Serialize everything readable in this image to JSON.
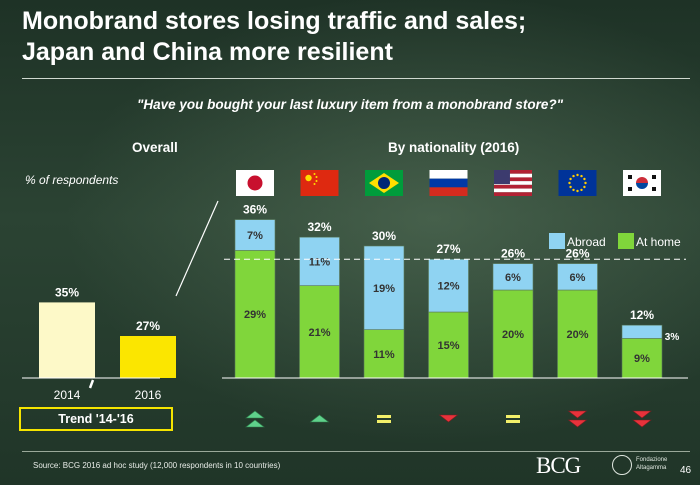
{
  "title_line1": "Monobrand stores losing traffic and sales;",
  "title_line2": "Japan and China more resilient",
  "question": "\"Have you bought your last luxury item from a monobrand store?\"",
  "overall_heading": "Overall",
  "nationality_heading": "By nationality (2016)",
  "respondents_label": "% of respondents",
  "trend_label": "Trend '14-'16",
  "source": "Source: BCG 2016 ad hoc study (12,000 respondents in 10 countries)",
  "logo_text": "BCG",
  "partner_logo_line1": "Fondazione",
  "partner_logo_line2": "Altagamma",
  "page_number": "46",
  "colors": {
    "overall_2014": "#fdf9c8",
    "overall_2016": "#fbe600",
    "abroad": "#8fd3f2",
    "at_home": "#80d63b",
    "trend_up": "#5fd18b",
    "trend_flat": "#f3f06a",
    "trend_down": "#e8323b"
  },
  "chart_data": [
    {
      "type": "bar",
      "title": "Overall",
      "ylabel": "% of respondents",
      "categories": [
        "2014",
        "2016"
      ],
      "values": [
        35,
        27
      ],
      "value_labels": [
        "35%",
        "27%"
      ],
      "axis_break": true
    },
    {
      "type": "stacked-bar",
      "title": "By nationality (2016)",
      "legend": [
        "Abroad",
        "At home"
      ],
      "legend_position": "top-right",
      "categories": [
        "Japan",
        "China",
        "Brazil",
        "Russia",
        "USA",
        "Europe",
        "Korea"
      ],
      "flags": [
        "japan-flag",
        "china-flag",
        "brazil-flag",
        "russia-flag",
        "usa-flag",
        "eu-flag",
        "korea-flag"
      ],
      "series": [
        {
          "name": "At home",
          "values": [
            29,
            21,
            11,
            15,
            20,
            20,
            9
          ],
          "labels": [
            "29%",
            "21%",
            "11%",
            "15%",
            "20%",
            "20%",
            "9%"
          ]
        },
        {
          "name": "Abroad",
          "values": [
            7,
            11,
            19,
            12,
            6,
            6,
            3
          ],
          "labels": [
            "7%",
            "11%",
            "19%",
            "12%",
            "6%",
            "6%",
            "3%"
          ]
        }
      ],
      "totals": [
        36,
        32,
        30,
        27,
        26,
        26,
        12
      ],
      "total_labels": [
        "36%",
        "32%",
        "30%",
        "27%",
        "26%",
        "26%",
        "12%"
      ],
      "reference_line": 27,
      "trends": [
        "up-double",
        "up",
        "flat",
        "down",
        "flat",
        "down-double",
        "down-double"
      ]
    }
  ]
}
